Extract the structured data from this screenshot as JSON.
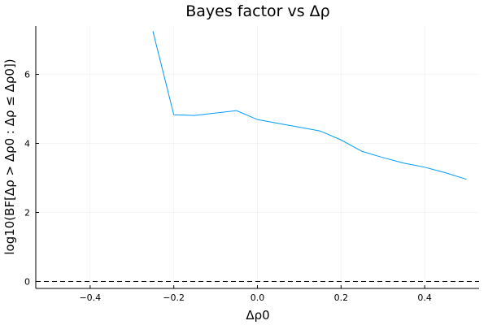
{
  "chart_data": {
    "type": "line",
    "title": "Bayes factor vs Δρ",
    "xlabel": "Δρ0",
    "ylabel": "log10(BF[Δρ > Δρ0 : Δρ ≤ Δρ0])",
    "xlim": [
      -0.53,
      0.53
    ],
    "ylim": [
      -0.2,
      7.4
    ],
    "xticks": [
      -0.4,
      -0.2,
      0.0,
      0.2,
      0.4
    ],
    "xtick_labels": [
      "−0.4",
      "−0.2",
      "0.0",
      "0.2",
      "0.4"
    ],
    "yticks": [
      0,
      2,
      4,
      6
    ],
    "ytick_labels": [
      "0",
      "2",
      "4",
      "6"
    ],
    "grid": true,
    "legend": "none",
    "series": [
      {
        "color": "#009af9",
        "style": "solid",
        "x": [
          -0.25,
          -0.2,
          -0.15,
          -0.1,
          -0.05,
          0.0,
          0.05,
          0.1,
          0.15,
          0.2,
          0.25,
          0.3,
          0.35,
          0.4,
          0.45,
          0.5
        ],
        "y": [
          7.25,
          4.83,
          4.81,
          4.88,
          4.95,
          4.69,
          4.58,
          4.47,
          4.36,
          4.1,
          3.77,
          3.59,
          3.43,
          3.31,
          3.15,
          2.96
        ]
      }
    ],
    "reference_lines": [
      {
        "orientation": "horizontal",
        "y": 0,
        "color": "#000000",
        "style": "dashed"
      }
    ]
  }
}
